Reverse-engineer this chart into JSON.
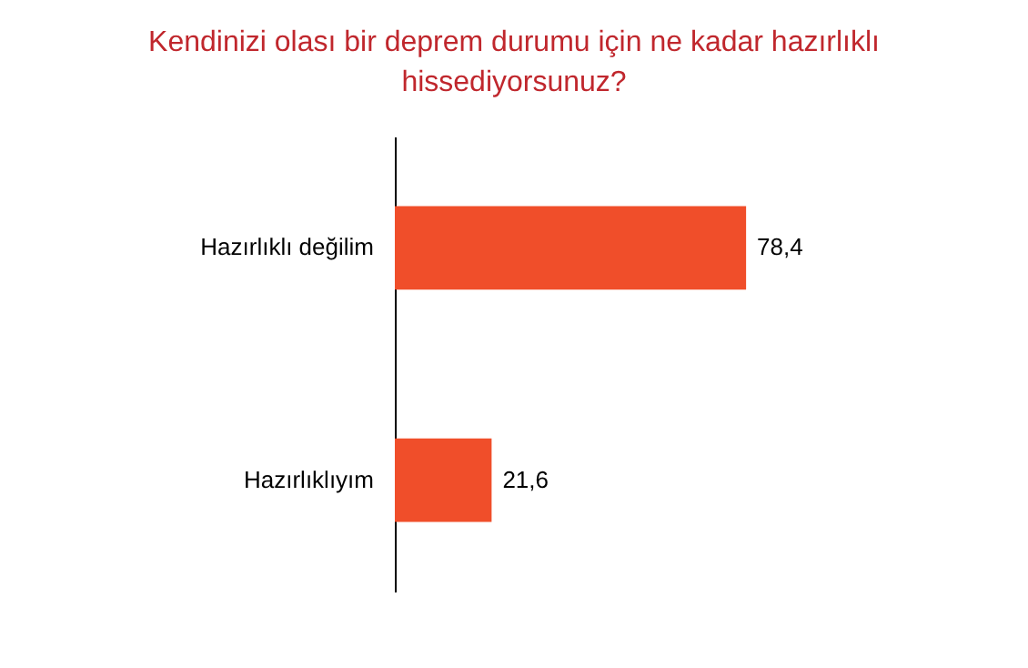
{
  "chart_data": {
    "type": "bar",
    "orientation": "horizontal",
    "title": [
      "Kendinizi olası bir deprem durumu için ne kadar hazırlıklı",
      "hissediyorsunuz?"
    ],
    "categories": [
      "Hazırlıklı değilim",
      "Hazırlıklıyım"
    ],
    "values": [
      78.4,
      21.6
    ],
    "value_labels": [
      "78,4",
      "21,6"
    ],
    "color": "#f04e2a",
    "tick_labels": "y"
  }
}
